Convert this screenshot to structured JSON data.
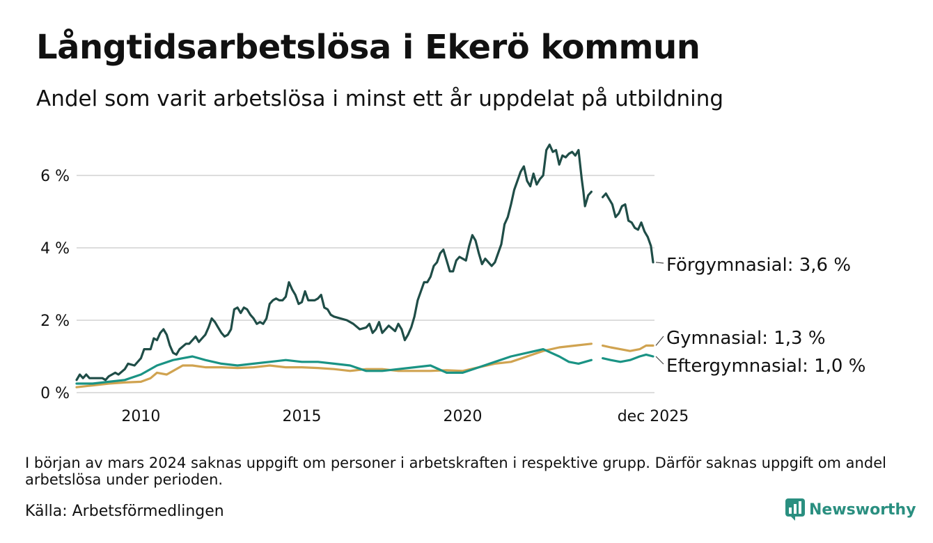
{
  "header": {
    "title": "Långtidsarbetslösa i Ekerö kommun",
    "subtitle": "Andel som varit arbetslösa i minst ett år uppdelat på utbildning"
  },
  "footer": {
    "note": "I början av mars 2024 saknas uppgift om personer i arbetskraften i respektive grupp. Därför saknas uppgift om andel arbetslösa under perioden.",
    "source": "Källa: Arbetsförmedlingen",
    "brand": "Newsworthy",
    "brand_icon": "newsworthy-logo-icon"
  },
  "colors": {
    "forgymnasial": "#1f4d47",
    "gymnasial": "#d0a350",
    "eftergymnasial": "#1a9384",
    "grid": "#dddddd",
    "brand": "#2a8f80"
  },
  "chart_data": {
    "type": "line",
    "title": "Långtidsarbetslösa i Ekerö kommun",
    "subtitle": "Andel som varit arbetslösa i minst ett år uppdelat på utbildning",
    "xlabel": "",
    "ylabel": "",
    "xlim": [
      2008.0,
      2025.917
    ],
    "ylim": [
      0,
      7
    ],
    "grid": true,
    "y_ticks": [
      {
        "value": 0,
        "label": "0 %"
      },
      {
        "value": 2,
        "label": "2 %"
      },
      {
        "value": 4,
        "label": "4 %"
      },
      {
        "value": 6,
        "label": "6 %"
      }
    ],
    "x_ticks": [
      {
        "value": 2010,
        "label": "2010"
      },
      {
        "value": 2015,
        "label": "2015"
      },
      {
        "value": 2020,
        "label": "2020"
      },
      {
        "value": 2025.917,
        "label": "dec 2025"
      }
    ],
    "gap": [
      2024.0,
      2024.35
    ],
    "series": [
      {
        "name": "Förgymnasial",
        "end_label": "Förgymnasial: 3,6 %",
        "color": "#1f4d47",
        "points": [
          [
            2008.0,
            0.35
          ],
          [
            2008.1,
            0.5
          ],
          [
            2008.2,
            0.4
          ],
          [
            2008.3,
            0.5
          ],
          [
            2008.4,
            0.4
          ],
          [
            2008.5,
            0.4
          ],
          [
            2008.8,
            0.4
          ],
          [
            2008.9,
            0.35
          ],
          [
            2009.0,
            0.45
          ],
          [
            2009.2,
            0.55
          ],
          [
            2009.3,
            0.5
          ],
          [
            2009.5,
            0.65
          ],
          [
            2009.6,
            0.8
          ],
          [
            2009.8,
            0.75
          ],
          [
            2010.0,
            0.95
          ],
          [
            2010.1,
            1.2
          ],
          [
            2010.3,
            1.2
          ],
          [
            2010.4,
            1.5
          ],
          [
            2010.5,
            1.45
          ],
          [
            2010.6,
            1.65
          ],
          [
            2010.7,
            1.75
          ],
          [
            2010.8,
            1.6
          ],
          [
            2010.9,
            1.3
          ],
          [
            2011.0,
            1.1
          ],
          [
            2011.1,
            1.05
          ],
          [
            2011.2,
            1.2
          ],
          [
            2011.4,
            1.35
          ],
          [
            2011.5,
            1.35
          ],
          [
            2011.6,
            1.45
          ],
          [
            2011.7,
            1.55
          ],
          [
            2011.8,
            1.4
          ],
          [
            2011.9,
            1.5
          ],
          [
            2012.0,
            1.6
          ],
          [
            2012.1,
            1.8
          ],
          [
            2012.2,
            2.05
          ],
          [
            2012.3,
            1.95
          ],
          [
            2012.4,
            1.8
          ],
          [
            2012.5,
            1.65
          ],
          [
            2012.6,
            1.55
          ],
          [
            2012.7,
            1.6
          ],
          [
            2012.8,
            1.75
          ],
          [
            2012.9,
            2.3
          ],
          [
            2013.0,
            2.35
          ],
          [
            2013.1,
            2.2
          ],
          [
            2013.2,
            2.35
          ],
          [
            2013.3,
            2.3
          ],
          [
            2013.4,
            2.15
          ],
          [
            2013.5,
            2.05
          ],
          [
            2013.6,
            1.9
          ],
          [
            2013.7,
            1.95
          ],
          [
            2013.8,
            1.9
          ],
          [
            2013.9,
            2.05
          ],
          [
            2014.0,
            2.45
          ],
          [
            2014.1,
            2.55
          ],
          [
            2014.2,
            2.6
          ],
          [
            2014.3,
            2.55
          ],
          [
            2014.4,
            2.55
          ],
          [
            2014.5,
            2.65
          ],
          [
            2014.6,
            3.05
          ],
          [
            2014.7,
            2.85
          ],
          [
            2014.8,
            2.7
          ],
          [
            2014.9,
            2.45
          ],
          [
            2015.0,
            2.5
          ],
          [
            2015.1,
            2.8
          ],
          [
            2015.2,
            2.55
          ],
          [
            2015.4,
            2.55
          ],
          [
            2015.5,
            2.6
          ],
          [
            2015.6,
            2.7
          ],
          [
            2015.7,
            2.35
          ],
          [
            2015.8,
            2.3
          ],
          [
            2015.9,
            2.15
          ],
          [
            2016.0,
            2.1
          ],
          [
            2016.2,
            2.05
          ],
          [
            2016.4,
            2.0
          ],
          [
            2016.6,
            1.9
          ],
          [
            2016.8,
            1.75
          ],
          [
            2017.0,
            1.8
          ],
          [
            2017.1,
            1.9
          ],
          [
            2017.2,
            1.65
          ],
          [
            2017.3,
            1.75
          ],
          [
            2017.4,
            1.95
          ],
          [
            2017.5,
            1.65
          ],
          [
            2017.7,
            1.85
          ],
          [
            2017.9,
            1.7
          ],
          [
            2018.0,
            1.9
          ],
          [
            2018.1,
            1.75
          ],
          [
            2018.2,
            1.45
          ],
          [
            2018.3,
            1.6
          ],
          [
            2018.4,
            1.8
          ],
          [
            2018.5,
            2.1
          ],
          [
            2018.6,
            2.55
          ],
          [
            2018.7,
            2.8
          ],
          [
            2018.8,
            3.05
          ],
          [
            2018.9,
            3.05
          ],
          [
            2019.0,
            3.2
          ],
          [
            2019.1,
            3.5
          ],
          [
            2019.2,
            3.6
          ],
          [
            2019.3,
            3.85
          ],
          [
            2019.4,
            3.95
          ],
          [
            2019.5,
            3.65
          ],
          [
            2019.6,
            3.35
          ],
          [
            2019.7,
            3.35
          ],
          [
            2019.8,
            3.65
          ],
          [
            2019.9,
            3.75
          ],
          [
            2020.0,
            3.7
          ],
          [
            2020.1,
            3.65
          ],
          [
            2020.2,
            4.05
          ],
          [
            2020.3,
            4.35
          ],
          [
            2020.4,
            4.2
          ],
          [
            2020.5,
            3.85
          ],
          [
            2020.6,
            3.55
          ],
          [
            2020.7,
            3.7
          ],
          [
            2020.8,
            3.6
          ],
          [
            2020.9,
            3.5
          ],
          [
            2021.0,
            3.6
          ],
          [
            2021.1,
            3.85
          ],
          [
            2021.2,
            4.1
          ],
          [
            2021.3,
            4.65
          ],
          [
            2021.4,
            4.85
          ],
          [
            2021.5,
            5.2
          ],
          [
            2021.6,
            5.6
          ],
          [
            2021.7,
            5.85
          ],
          [
            2021.8,
            6.1
          ],
          [
            2021.9,
            6.25
          ],
          [
            2022.0,
            5.85
          ],
          [
            2022.1,
            5.7
          ],
          [
            2022.2,
            6.05
          ],
          [
            2022.3,
            5.75
          ],
          [
            2022.4,
            5.9
          ],
          [
            2022.5,
            6.0
          ],
          [
            2022.6,
            6.7
          ],
          [
            2022.7,
            6.85
          ],
          [
            2022.8,
            6.65
          ],
          [
            2022.9,
            6.7
          ],
          [
            2023.0,
            6.3
          ],
          [
            2023.1,
            6.55
          ],
          [
            2023.2,
            6.5
          ],
          [
            2023.3,
            6.6
          ],
          [
            2023.4,
            6.65
          ],
          [
            2023.5,
            6.55
          ],
          [
            2023.6,
            6.7
          ],
          [
            2023.7,
            5.9
          ],
          [
            2023.75,
            5.55
          ],
          [
            2023.8,
            5.15
          ],
          [
            2023.85,
            5.3
          ],
          [
            2023.9,
            5.45
          ],
          [
            2023.95,
            5.5
          ],
          [
            2024.0,
            5.55
          ],
          [
            2024.35,
            5.4
          ],
          [
            2024.45,
            5.5
          ],
          [
            2024.55,
            5.35
          ],
          [
            2024.65,
            5.2
          ],
          [
            2024.75,
            4.85
          ],
          [
            2024.85,
            4.95
          ],
          [
            2024.95,
            5.15
          ],
          [
            2025.05,
            5.2
          ],
          [
            2025.15,
            4.75
          ],
          [
            2025.25,
            4.7
          ],
          [
            2025.35,
            4.55
          ],
          [
            2025.45,
            4.5
          ],
          [
            2025.55,
            4.7
          ],
          [
            2025.65,
            4.45
          ],
          [
            2025.75,
            4.3
          ],
          [
            2025.85,
            4.05
          ],
          [
            2025.917,
            3.6
          ]
        ]
      },
      {
        "name": "Gymnasial",
        "end_label": "Gymnasial: 1,3 %",
        "color": "#d0a350",
        "points": [
          [
            2008.0,
            0.15
          ],
          [
            2008.5,
            0.2
          ],
          [
            2009.0,
            0.25
          ],
          [
            2009.5,
            0.28
          ],
          [
            2010.0,
            0.3
          ],
          [
            2010.3,
            0.4
          ],
          [
            2010.5,
            0.55
          ],
          [
            2010.8,
            0.5
          ],
          [
            2011.0,
            0.6
          ],
          [
            2011.3,
            0.75
          ],
          [
            2011.6,
            0.75
          ],
          [
            2012.0,
            0.7
          ],
          [
            2012.5,
            0.7
          ],
          [
            2013.0,
            0.68
          ],
          [
            2013.5,
            0.7
          ],
          [
            2014.0,
            0.75
          ],
          [
            2014.5,
            0.7
          ],
          [
            2015.0,
            0.7
          ],
          [
            2015.5,
            0.68
          ],
          [
            2016.0,
            0.65
          ],
          [
            2016.5,
            0.6
          ],
          [
            2017.0,
            0.65
          ],
          [
            2017.5,
            0.65
          ],
          [
            2018.0,
            0.6
          ],
          [
            2018.5,
            0.6
          ],
          [
            2019.0,
            0.6
          ],
          [
            2019.5,
            0.62
          ],
          [
            2020.0,
            0.6
          ],
          [
            2020.5,
            0.7
          ],
          [
            2021.0,
            0.8
          ],
          [
            2021.5,
            0.85
          ],
          [
            2022.0,
            1.0
          ],
          [
            2022.5,
            1.15
          ],
          [
            2023.0,
            1.25
          ],
          [
            2023.5,
            1.3
          ],
          [
            2024.0,
            1.35
          ],
          [
            2024.35,
            1.3
          ],
          [
            2024.6,
            1.25
          ],
          [
            2024.9,
            1.2
          ],
          [
            2025.2,
            1.15
          ],
          [
            2025.5,
            1.2
          ],
          [
            2025.7,
            1.3
          ],
          [
            2025.917,
            1.3
          ]
        ]
      },
      {
        "name": "Eftergymnasial",
        "end_label": "Eftergymnasial: 1,0 %",
        "color": "#1a9384",
        "points": [
          [
            2008.0,
            0.25
          ],
          [
            2008.5,
            0.25
          ],
          [
            2009.0,
            0.3
          ],
          [
            2009.5,
            0.35
          ],
          [
            2010.0,
            0.5
          ],
          [
            2010.5,
            0.75
          ],
          [
            2011.0,
            0.9
          ],
          [
            2011.3,
            0.95
          ],
          [
            2011.6,
            1.0
          ],
          [
            2012.0,
            0.9
          ],
          [
            2012.5,
            0.8
          ],
          [
            2013.0,
            0.75
          ],
          [
            2013.5,
            0.8
          ],
          [
            2014.0,
            0.85
          ],
          [
            2014.5,
            0.9
          ],
          [
            2015.0,
            0.85
          ],
          [
            2015.5,
            0.85
          ],
          [
            2016.0,
            0.8
          ],
          [
            2016.5,
            0.75
          ],
          [
            2017.0,
            0.6
          ],
          [
            2017.5,
            0.6
          ],
          [
            2018.0,
            0.65
          ],
          [
            2018.5,
            0.7
          ],
          [
            2019.0,
            0.75
          ],
          [
            2019.5,
            0.55
          ],
          [
            2020.0,
            0.55
          ],
          [
            2020.5,
            0.7
          ],
          [
            2021.0,
            0.85
          ],
          [
            2021.5,
            1.0
          ],
          [
            2022.0,
            1.1
          ],
          [
            2022.5,
            1.2
          ],
          [
            2023.0,
            1.0
          ],
          [
            2023.3,
            0.85
          ],
          [
            2023.6,
            0.8
          ],
          [
            2024.0,
            0.9
          ],
          [
            2024.35,
            0.95
          ],
          [
            2024.6,
            0.9
          ],
          [
            2024.9,
            0.85
          ],
          [
            2025.2,
            0.9
          ],
          [
            2025.5,
            1.0
          ],
          [
            2025.7,
            1.05
          ],
          [
            2025.917,
            1.0
          ]
        ]
      }
    ]
  }
}
